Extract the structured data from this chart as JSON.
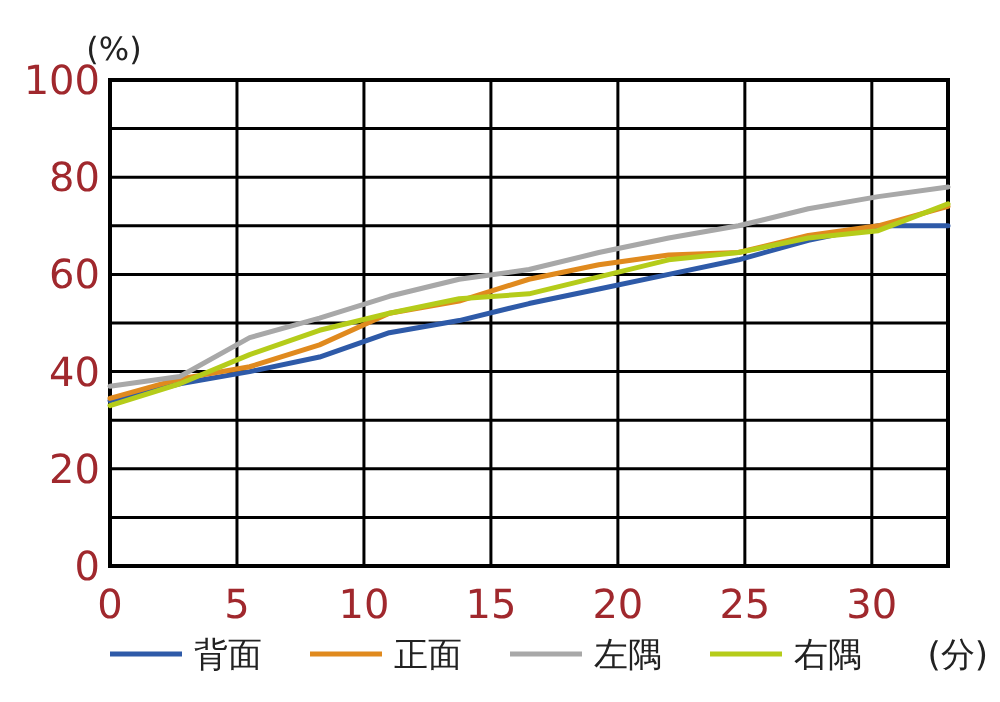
{
  "chart_data": {
    "type": "line",
    "xlabel": "(分)",
    "ylabel": "(%)",
    "xlim": [
      0,
      33
    ],
    "xticks": [
      0,
      5,
      10,
      15,
      20,
      25,
      30
    ],
    "ylim": [
      0,
      100
    ],
    "yticks": [
      0,
      {
        "value": 10,
        "label": null
      },
      20,
      {
        "value": 30,
        "label": null
      },
      40,
      {
        "value": 50,
        "label": null
      },
      60,
      {
        "value": 70,
        "label": null
      },
      80,
      {
        "value": 90,
        "label": null
      },
      100
    ],
    "x": [
      0,
      2.75,
      5.5,
      8.25,
      11,
      13.75,
      16.5,
      19.25,
      22,
      24.75,
      27.5,
      30.25,
      33
    ],
    "series": [
      {
        "name": "背面",
        "color": "#2e5aa8",
        "values": [
          34,
          37.5,
          40,
          43,
          48,
          50.5,
          54,
          57,
          60,
          63,
          67,
          70,
          70
        ]
      },
      {
        "name": "正面",
        "color": "#e08a1e",
        "values": [
          34.5,
          38.5,
          41,
          45.5,
          52,
          54.5,
          59,
          62,
          64,
          64.5,
          68,
          70,
          74
        ]
      },
      {
        "name": "左隅",
        "color": "#a8a8a8",
        "values": [
          37,
          39,
          47,
          51,
          55.5,
          59,
          61,
          64.5,
          67.5,
          70,
          73.5,
          76,
          78
        ]
      },
      {
        "name": "右隅",
        "color": "#b5cc1a",
        "values": [
          33,
          37.5,
          43.5,
          48.5,
          52,
          55,
          56,
          59.5,
          63,
          64.5,
          67.5,
          69,
          74.5
        ]
      }
    ],
    "grid": true,
    "legend": "bottom",
    "marker": "none",
    "line_style": "solid"
  }
}
